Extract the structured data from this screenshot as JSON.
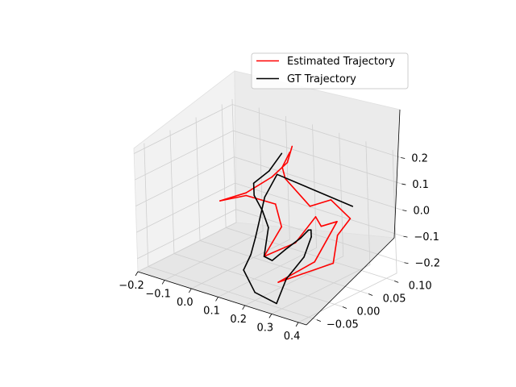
{
  "chart_data": {
    "type": "line3d",
    "title": "",
    "xlabel": "",
    "ylabel": "",
    "zlabel": "",
    "grid": true,
    "legend_position": "top-right",
    "xlim": [
      -0.2,
      0.43
    ],
    "ylim": [
      -0.07,
      0.12
    ],
    "zlim": [
      -0.25,
      0.22
    ],
    "x_ticks": [
      -0.2,
      -0.1,
      0.0,
      0.1,
      0.2,
      0.3,
      0.4
    ],
    "x_tick_labels": [
      "−0.2",
      "−0.1",
      "0.0",
      "0.1",
      "0.2",
      "0.3",
      "0.4"
    ],
    "y_ticks": [
      -0.05,
      0.0,
      0.05,
      0.1
    ],
    "y_tick_labels": [
      "−0.05",
      "0.00",
      "0.05",
      "0.10"
    ],
    "z_ticks": [
      -0.2,
      -0.1,
      0.0,
      0.1,
      0.2
    ],
    "z_tick_labels": [
      "−0.2",
      "−0.1",
      "0.0",
      "0.1",
      "0.2"
    ],
    "series": [
      {
        "name": "Estimated Trajectory",
        "color": "#ff0000",
        "points": [
          [
            0.08,
            0.09,
            0.16
          ],
          [
            0.07,
            0.085,
            0.1
          ],
          [
            0.04,
            0.07,
            0.05
          ],
          [
            -0.02,
            0.05,
            -0.01
          ],
          [
            -0.08,
            0.03,
            -0.04
          ],
          [
            -0.02,
            0.05,
            -0.02
          ],
          [
            0.05,
            0.07,
            -0.05
          ],
          [
            0.07,
            0.07,
            -0.13
          ],
          [
            0.08,
            0.03,
            -0.2
          ],
          [
            0.2,
            0.03,
            -0.11
          ],
          [
            0.2,
            0.07,
            -0.05
          ],
          [
            0.22,
            0.07,
            -0.08
          ],
          [
            0.32,
            0.05,
            -0.01
          ],
          [
            0.27,
            0.03,
            -0.16
          ],
          [
            0.17,
            0.01,
            -0.25
          ],
          [
            0.38,
            0.01,
            -0.11
          ],
          [
            0.36,
            0.03,
            -0.03
          ],
          [
            0.41,
            0.03,
            0.05
          ],
          [
            0.28,
            0.06,
            0.05
          ],
          [
            0.2,
            0.06,
            0.0
          ],
          [
            0.09,
            0.07,
            0.06
          ],
          [
            0.08,
            0.07,
            0.1
          ],
          [
            0.09,
            0.08,
            0.15
          ]
        ]
      },
      {
        "name": "GT Trajectory",
        "color": "#000000",
        "points": [
          [
            0.04,
            0.09,
            0.12
          ],
          [
            0.03,
            0.07,
            0.07
          ],
          [
            -0.01,
            0.06,
            0.02
          ],
          [
            0.01,
            0.05,
            -0.01
          ],
          [
            0.04,
            0.05,
            -0.06
          ],
          [
            0.08,
            0.04,
            -0.1
          ],
          [
            0.08,
            0.03,
            -0.2
          ],
          [
            0.13,
            0.02,
            -0.19
          ],
          [
            0.22,
            0.0,
            -0.1
          ],
          [
            0.3,
            -0.01,
            -0.02
          ],
          [
            0.33,
            -0.01,
            0.02
          ],
          [
            0.36,
            -0.02,
            0.04
          ],
          [
            0.38,
            -0.03,
            0.03
          ],
          [
            0.37,
            -0.04,
            -0.04
          ],
          [
            0.32,
            -0.05,
            -0.13
          ],
          [
            0.3,
            -0.06,
            -0.22
          ],
          [
            0.2,
            -0.05,
            -0.22
          ],
          [
            0.12,
            -0.03,
            -0.18
          ],
          [
            0.09,
            0.0,
            -0.16
          ],
          [
            0.07,
            0.02,
            -0.12
          ],
          [
            0.05,
            0.04,
            -0.07
          ],
          [
            0.03,
            0.06,
            -0.02
          ],
          [
            0.04,
            0.08,
            0.05
          ],
          [
            0.42,
            0.03,
            0.1
          ]
        ]
      }
    ]
  }
}
